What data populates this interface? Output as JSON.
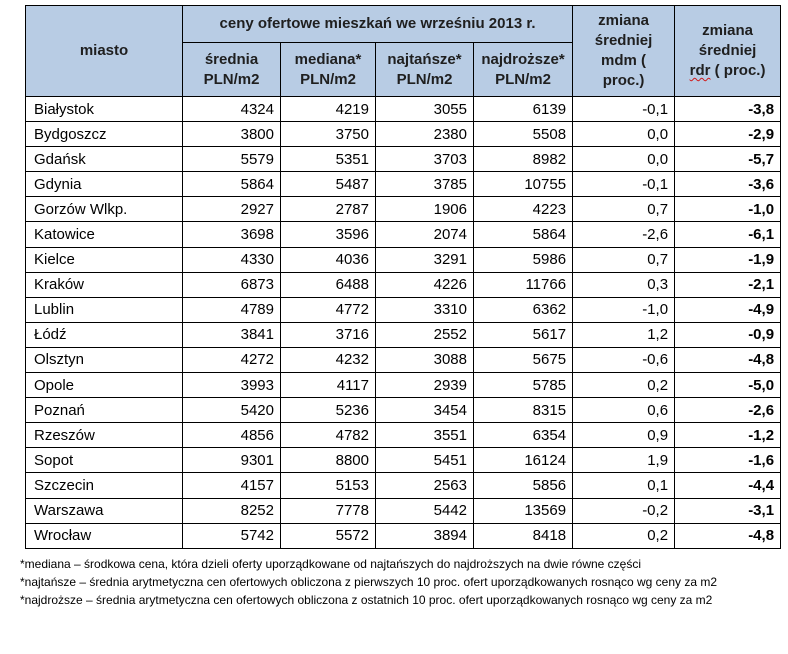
{
  "header": {
    "city": "miasto",
    "group": "ceny ofertowe  mieszkań we wrześniu 2013 r.",
    "mom": [
      "zmiana",
      "średniej",
      "mdm (",
      "proc.)"
    ],
    "yoy": [
      "zmiana",
      "średniej",
      "rdr",
      "( proc.)"
    ],
    "cols": [
      [
        "średnia",
        "PLN/m2"
      ],
      [
        "mediana*",
        "PLN/m2"
      ],
      [
        "najtańsze*",
        "PLN/m2"
      ],
      [
        "najdroższe*",
        "PLN/m2"
      ]
    ]
  },
  "rows": [
    [
      "Białystok",
      "4324",
      "4219",
      "3055",
      "6139",
      "-0,1",
      "-3,8"
    ],
    [
      "Bydgoszcz",
      "3800",
      "3750",
      "2380",
      "5508",
      "0,0",
      "-2,9"
    ],
    [
      "Gdańsk",
      "5579",
      "5351",
      "3703",
      "8982",
      "0,0",
      "-5,7"
    ],
    [
      "Gdynia",
      "5864",
      "5487",
      "3785",
      "10755",
      "-0,1",
      "-3,6"
    ],
    [
      "Gorzów Wlkp.",
      "2927",
      "2787",
      "1906",
      "4223",
      "0,7",
      "-1,0"
    ],
    [
      "Katowice",
      "3698",
      "3596",
      "2074",
      "5864",
      "-2,6",
      "-6,1"
    ],
    [
      "Kielce",
      "4330",
      "4036",
      "3291",
      "5986",
      "0,7",
      "-1,9"
    ],
    [
      "Kraków",
      "6873",
      "6488",
      "4226",
      "11766",
      "0,3",
      "-2,1"
    ],
    [
      "Lublin",
      "4789",
      "4772",
      "3310",
      "6362",
      "-1,0",
      "-4,9"
    ],
    [
      "Łódź",
      "3841",
      "3716",
      "2552",
      "5617",
      "1,2",
      "-0,9"
    ],
    [
      "Olsztyn",
      "4272",
      "4232",
      "3088",
      "5675",
      "-0,6",
      "-4,8"
    ],
    [
      "Opole",
      "3993",
      "4117",
      "2939",
      "5785",
      "0,2",
      "-5,0"
    ],
    [
      "Poznań",
      "5420",
      "5236",
      "3454",
      "8315",
      "0,6",
      "-2,6"
    ],
    [
      "Rzeszów",
      "4856",
      "4782",
      "3551",
      "6354",
      "0,9",
      "-1,2"
    ],
    [
      "Sopot",
      "9301",
      "8800",
      "5451",
      "16124",
      "1,9",
      "-1,6"
    ],
    [
      "Szczecin",
      "4157",
      "5153",
      "2563",
      "5856",
      "0,1",
      "-4,4"
    ],
    [
      "Warszawa",
      "8252",
      "7778",
      "5442",
      "13569",
      "-0,2",
      "-3,1"
    ],
    [
      "Wrocław",
      "5742",
      "5572",
      "3894",
      "8418",
      "0,2",
      "-4,8"
    ]
  ],
  "footnotes": [
    "*mediana – środkowa cena, która dzieli oferty uporządkowane od najtańszych do najdroższych na dwie równe części",
    "*najtańsze – średnia arytmetyczna cen ofertowych obliczona z pierwszych 10 proc. ofert uporządkowanych rosnąco wg ceny za m2",
    "*najdroższe – średnia arytmetyczna cen ofertowych obliczona z ostatnich 10 proc. ofert uporządkowanych rosnąco wg ceny za m2"
  ]
}
